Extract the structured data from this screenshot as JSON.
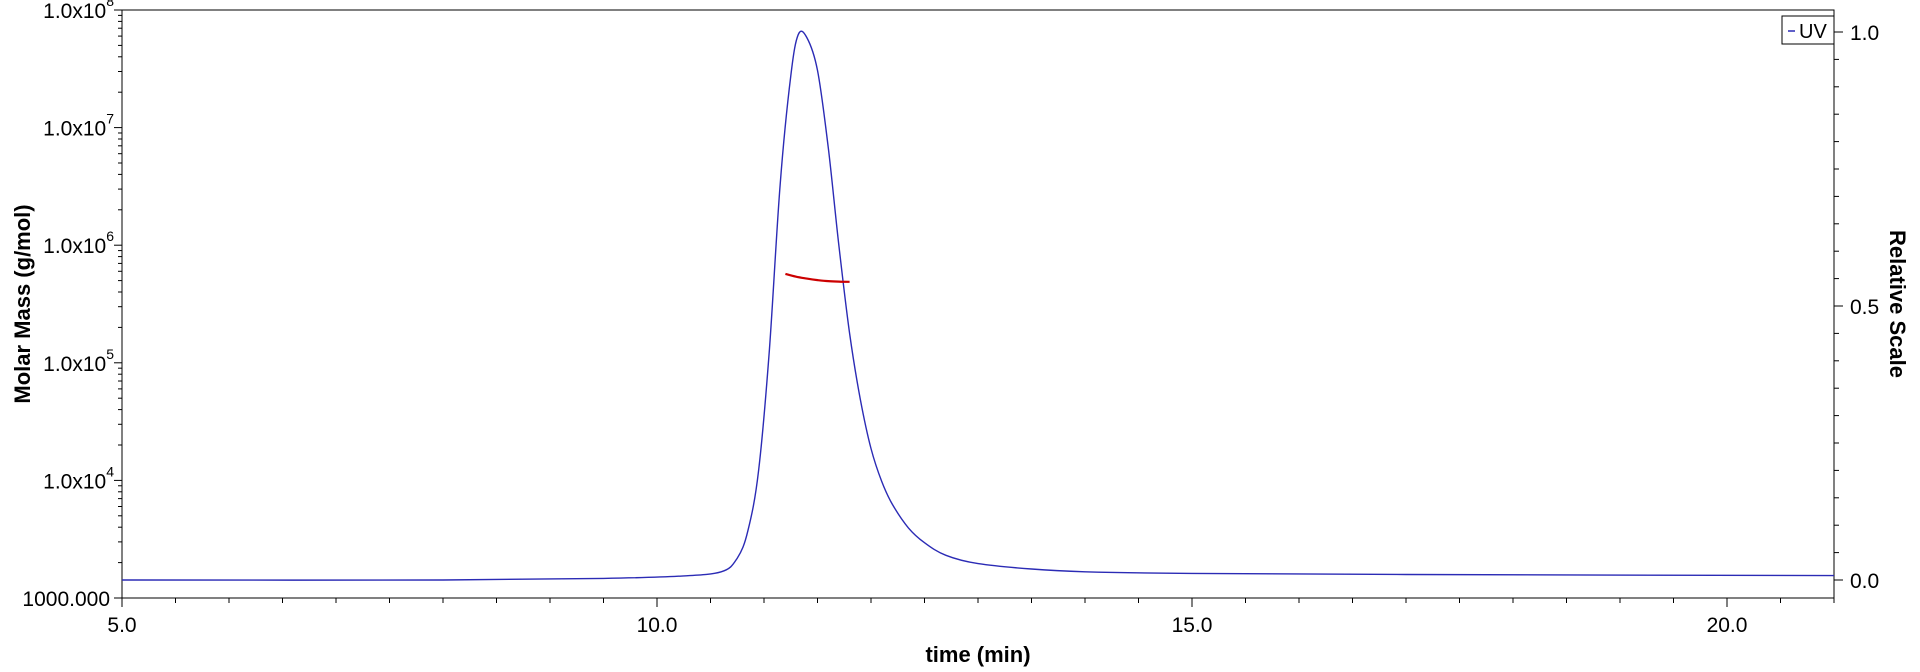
{
  "chart_data": {
    "type": "line",
    "xlabel": "time (min)",
    "ylabel_left": "Molar Mass (g/mol)",
    "ylabel_right": "Relative Scale",
    "xlim": [
      5.0,
      21.0
    ],
    "ylim_left": [
      1000,
      100000000
    ],
    "yscale_left": "log",
    "ylim_right": [
      0.0,
      1.0
    ],
    "x_ticks": [
      "5.0",
      "10.0",
      "15.0",
      "20.0"
    ],
    "y_left_ticks": [
      {
        "mantissa": "1000.000",
        "exponent": ""
      },
      {
        "mantissa": "1.0x10",
        "exponent": "4"
      },
      {
        "mantissa": "1.0x10",
        "exponent": "5"
      },
      {
        "mantissa": "1.0x10",
        "exponent": "6"
      },
      {
        "mantissa": "1.0x10",
        "exponent": "7"
      },
      {
        "mantissa": "1.0x10",
        "exponent": "8"
      }
    ],
    "y_right_ticks": [
      "0.0",
      "0.5",
      "1.0"
    ],
    "legend": {
      "label": "UV",
      "placement": "top-right"
    },
    "series": [
      {
        "name": "UV",
        "axis": "right",
        "color": "#2b2bb5",
        "x": [
          5.0,
          8.0,
          9.5,
          10.2,
          10.6,
          10.75,
          10.85,
          10.95,
          11.05,
          11.15,
          11.25,
          11.32,
          11.4,
          11.5,
          11.6,
          11.7,
          11.8,
          11.9,
          12.0,
          12.1,
          12.2,
          12.35,
          12.5,
          12.7,
          13.0,
          13.5,
          14.0,
          15.0,
          17.0,
          21.0
        ],
        "y": [
          0.0,
          0.0,
          0.003,
          0.007,
          0.015,
          0.04,
          0.09,
          0.2,
          0.42,
          0.72,
          0.92,
          0.995,
          0.99,
          0.93,
          0.79,
          0.61,
          0.45,
          0.33,
          0.24,
          0.18,
          0.138,
          0.095,
          0.068,
          0.045,
          0.03,
          0.02,
          0.015,
          0.012,
          0.01,
          0.008
        ]
      },
      {
        "name": "Molar Mass",
        "axis": "left",
        "color": "#cc0000",
        "x": [
          11.2,
          11.3,
          11.4,
          11.5,
          11.6,
          11.7,
          11.8
        ],
        "y": [
          570000,
          540000,
          520000,
          505000,
          495000,
          490000,
          488000
        ]
      }
    ]
  }
}
